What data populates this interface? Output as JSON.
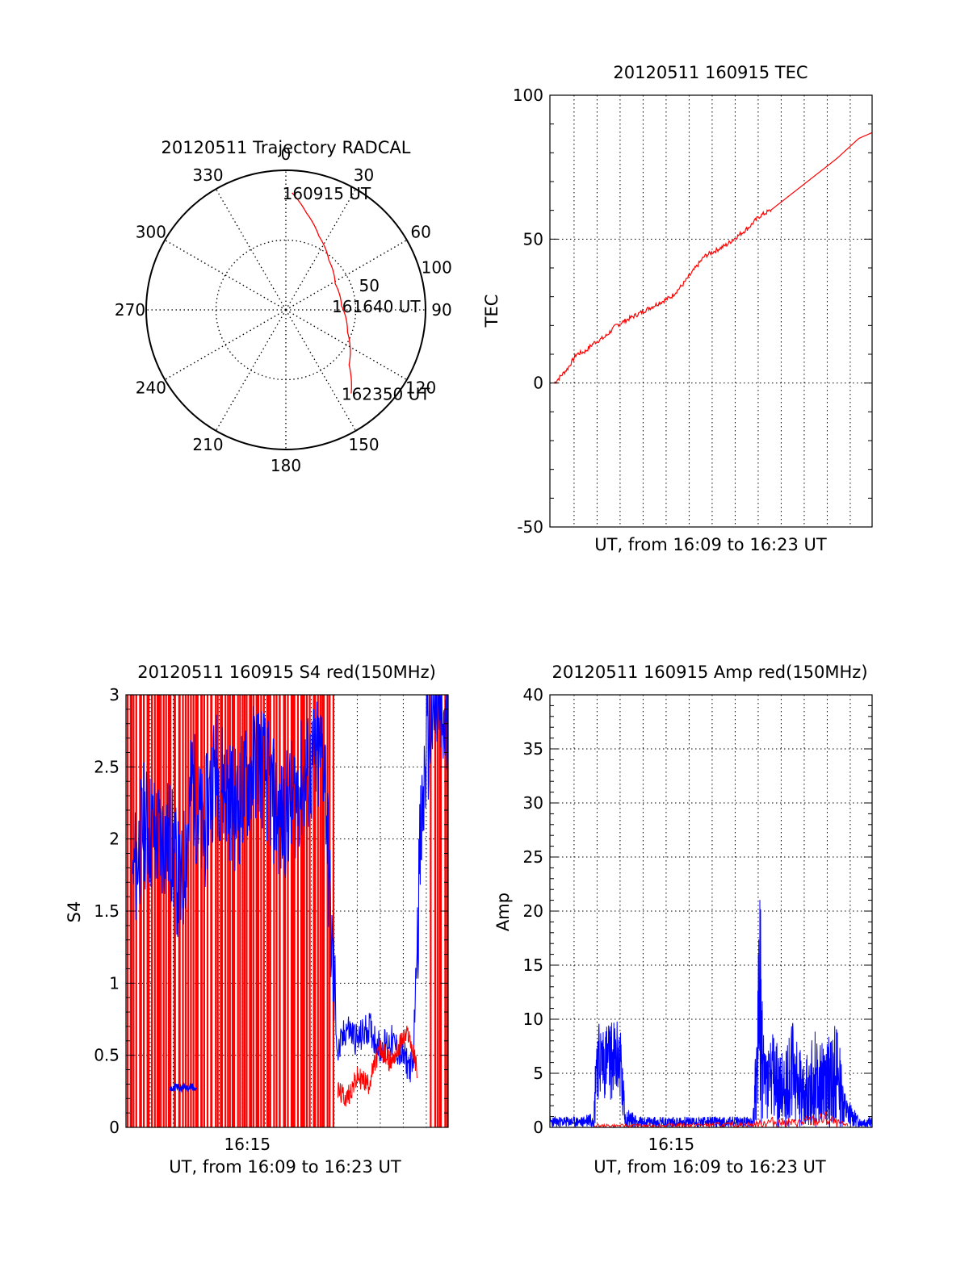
{
  "colors": {
    "red_series": "#ff0000",
    "blue_series": "#0000ff",
    "axis": "#000000",
    "grid": "#000000"
  },
  "chart_data": [
    {
      "id": "trajectory",
      "type": "polar",
      "title": "20120511 Trajectory RADCAL",
      "angle_labels": [
        "0",
        "30",
        "60",
        "90",
        "120",
        "150",
        "180",
        "210",
        "240",
        "270",
        "300",
        "330"
      ],
      "radius_labels": [
        "50",
        "100"
      ],
      "rlim": [
        0,
        100
      ],
      "grid": true,
      "series": [
        {
          "color": "#ff0000",
          "points": [
            {
              "az": 3,
              "r": 84
            },
            {
              "az": 12,
              "r": 71
            },
            {
              "az": 24,
              "r": 58
            },
            {
              "az": 41,
              "r": 47
            },
            {
              "az": 62,
              "r": 40
            },
            {
              "az": 86,
              "r": 40
            },
            {
              "az": 110,
              "r": 47
            },
            {
              "az": 131,
              "r": 60
            },
            {
              "az": 142,
              "r": 76
            }
          ]
        }
      ],
      "annotations": [
        {
          "text": "160915 UT",
          "az": 3,
          "r": 84
        },
        {
          "text": "161640 UT",
          "az": 86,
          "r": 40
        },
        {
          "text": "162350 UT",
          "az": 142,
          "r": 76
        }
      ]
    },
    {
      "id": "tec",
      "type": "line",
      "title": "20120511 160915 TEC",
      "xlabel": "UT, from 16:09 to 16:23 UT",
      "ylabel": "TEC",
      "ylim": [
        -50,
        100
      ],
      "yticks": [
        "-50",
        "0",
        "50",
        "100"
      ],
      "xlim": [
        0,
        14.6
      ],
      "grid": true,
      "series": [
        {
          "color": "#ff0000",
          "x": [
            0.2,
            0.8,
            1.2,
            1.6,
            2.0,
            2.5,
            3.0,
            3.5,
            4.0,
            4.5,
            5.0,
            5.5,
            6.0,
            6.5,
            7.0,
            7.5,
            8.0,
            8.5,
            9.0,
            9.5,
            10.0,
            11.0,
            12.0,
            13.0,
            14.0,
            14.6
          ],
          "y": [
            0,
            5,
            10,
            11,
            14,
            16,
            20,
            22,
            24,
            26,
            28,
            30,
            34,
            39,
            44,
            46,
            48,
            51,
            54,
            58,
            60,
            66,
            72,
            78,
            85,
            87
          ]
        }
      ]
    },
    {
      "id": "s4",
      "type": "line",
      "title": "20120511 160915 S4 red(150MHz)",
      "xlabel": "UT, from 16:09 to 16:23 UT",
      "ylabel": "S4",
      "ylim": [
        0,
        3
      ],
      "yticks": [
        "0",
        "0.5",
        "1",
        "1.5",
        "2",
        "2.5",
        "3"
      ],
      "xlim": [
        0,
        14.6
      ],
      "xticks": [
        {
          "x": 5.5,
          "label": "16:15"
        }
      ],
      "grid": true,
      "series": [
        {
          "color": "#ff0000",
          "x": [
            9.6,
            10.0,
            10.5,
            11.0,
            11.5,
            12.0,
            12.5,
            12.8,
            13.2
          ],
          "y": [
            0.25,
            0.2,
            0.35,
            0.3,
            0.55,
            0.45,
            0.6,
            0.65,
            0.4
          ]
        },
        {
          "color": "#0000ff",
          "x": [
            0.3,
            0.8,
            1.5,
            2.0,
            2.5,
            3.0,
            3.5,
            4.0,
            5.0,
            6.0,
            7.0,
            8.0,
            9.0,
            9.3,
            9.6,
            10.0,
            10.5,
            11.0,
            11.5,
            12.0,
            12.5,
            13.0,
            13.3,
            13.6,
            14.0,
            14.6
          ],
          "y": [
            1.7,
            2.1,
            2.0,
            2.0,
            1.6,
            2.4,
            2.0,
            2.5,
            2.2,
            2.6,
            2.1,
            2.4,
            2.6,
            1.3,
            0.5,
            0.7,
            0.6,
            0.7,
            0.55,
            0.6,
            0.5,
            0.4,
            1.8,
            2.6,
            2.9,
            2.7
          ]
        }
      ],
      "s4_flat_segment": {
        "x": [
          2.0,
          3.2
        ],
        "y": 0.28,
        "color": "#0000ff"
      },
      "red_fill_ranges": [
        [
          0,
          9.4
        ],
        [
          13.8,
          14.6
        ]
      ]
    },
    {
      "id": "amp",
      "type": "line",
      "title": "20120511 160915 Amp red(150MHz)",
      "xlabel": "UT, from 16:09 to 16:23 UT",
      "ylabel": "Amp",
      "ylim": [
        0,
        40
      ],
      "yticks": [
        "0",
        "5",
        "10",
        "15",
        "20",
        "25",
        "30",
        "35",
        "40"
      ],
      "xlim": [
        0,
        14.6
      ],
      "xticks": [
        {
          "x": 5.5,
          "label": "16:15"
        }
      ],
      "grid": true,
      "series": [
        {
          "color": "#0000ff",
          "x": [
            0,
            1.5,
            2.0,
            2.1,
            3.2,
            3.4,
            4.0,
            6.0,
            8.0,
            9.2,
            9.4,
            9.5,
            9.7,
            10.0,
            10.5,
            11.0,
            11.5,
            12.0,
            12.5,
            13.0,
            13.4,
            14.0,
            14.6
          ],
          "y": [
            1,
            1,
            2,
            10,
            10,
            2,
            1,
            1,
            1,
            1,
            12,
            24,
            8,
            9,
            7,
            10,
            6,
            9,
            8,
            10,
            3,
            1,
            1
          ]
        },
        {
          "color": "#ff0000",
          "x": [
            2.0,
            3.2,
            9.2,
            10.0,
            11.0,
            12.0,
            12.5,
            13.0,
            13.5
          ],
          "y": [
            0.3,
            0.3,
            0.5,
            1,
            0.8,
            1.2,
            1.5,
            0.8,
            0.3
          ]
        }
      ]
    }
  ]
}
